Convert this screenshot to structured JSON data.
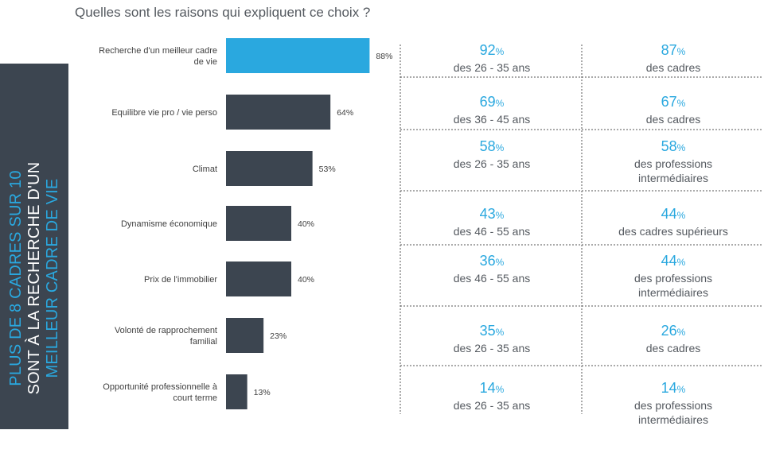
{
  "title": "Quelles sont les raisons qui expliquent ce choix ?",
  "sidebar": {
    "lines": [
      {
        "text": "PLUS DE 8 CADRES SUR 10",
        "color": "#2aa8df"
      },
      {
        "text": "SONT À LA RECHERCHE D'UN",
        "color": "#ffffff"
      },
      {
        "text": "MEILLEUR CADRE DE VIE",
        "color": "#2aa8df"
      }
    ]
  },
  "chart_data": {
    "type": "bar",
    "orientation": "horizontal",
    "categories": [
      "Recherche d'un meilleur cadre de vie",
      "Equilibre vie pro / vie perso",
      "Climat",
      "Dynamisme économique",
      "Prix de l'immobilier",
      "Volonté de rapprochement familial",
      "Opportunité professionnelle à court terme"
    ],
    "values": [
      88,
      64,
      53,
      40,
      40,
      23,
      13
    ],
    "value_labels": [
      "88%",
      "64%",
      "53%",
      "40%",
      "40%",
      "23%",
      "13%"
    ],
    "xlim": [
      0,
      100
    ],
    "highlight_index": 0,
    "highlight_color": "#2aa8df",
    "bar_color": "#3c4550",
    "grid": false,
    "legend": "none"
  },
  "stats": [
    [
      {
        "value": "92",
        "unit": "%",
        "desc": [
          "des 26 - 35 ans"
        ]
      },
      {
        "value": "87",
        "unit": "%",
        "desc": [
          "des cadres"
        ]
      }
    ],
    [
      {
        "value": "69",
        "unit": "%",
        "desc": [
          "des 36 - 45 ans"
        ]
      },
      {
        "value": "67",
        "unit": "%",
        "desc": [
          "des cadres"
        ]
      }
    ],
    [
      {
        "value": "58",
        "unit": "%",
        "desc": [
          "des 26 - 35 ans"
        ]
      },
      {
        "value": "58",
        "unit": "%",
        "desc": [
          "des professions",
          "intermédiaires"
        ]
      }
    ],
    [
      {
        "value": "43",
        "unit": "%",
        "desc": [
          "des 46 - 55 ans"
        ]
      },
      {
        "value": "44",
        "unit": "%",
        "desc": [
          "des cadres supérieurs"
        ]
      }
    ],
    [
      {
        "value": "36",
        "unit": "%",
        "desc": [
          "des 46 - 55 ans"
        ]
      },
      {
        "value": "44",
        "unit": "%",
        "desc": [
          "des professions",
          "intermédiaires"
        ]
      }
    ],
    [
      {
        "value": "35",
        "unit": "%",
        "desc": [
          "des 26 - 35 ans"
        ]
      },
      {
        "value": "26",
        "unit": "%",
        "desc": [
          "des cadres"
        ]
      }
    ],
    [
      {
        "value": "14",
        "unit": "%",
        "desc": [
          "des 26 - 35 ans"
        ]
      },
      {
        "value": "14",
        "unit": "%",
        "desc": [
          "des professions",
          "intermédiaires"
        ]
      }
    ]
  ]
}
